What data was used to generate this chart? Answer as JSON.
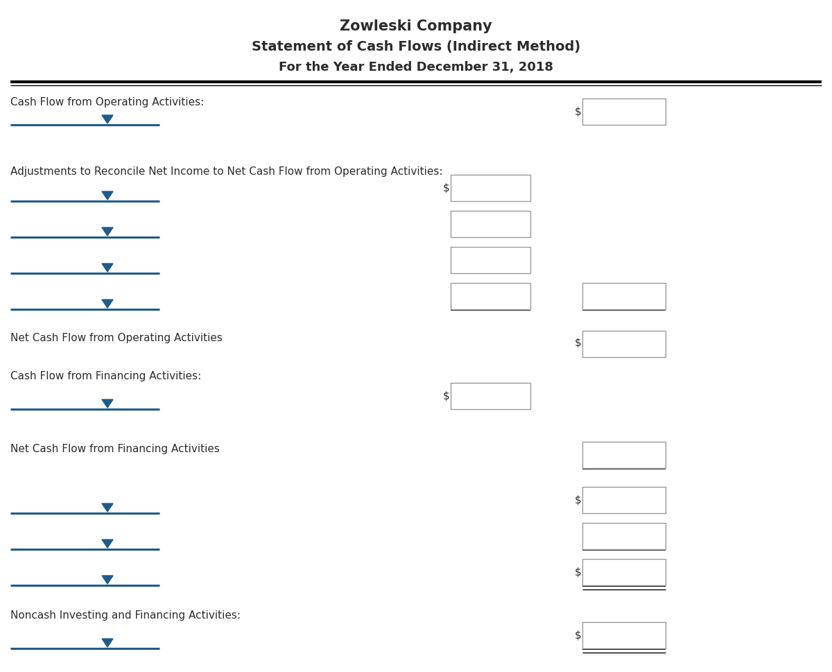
{
  "title1": "Zowleski Company",
  "title2": "Statement of Cash Flows (Indirect Method)",
  "title3": "For the Year Ended December 31, 2018",
  "bg_color": "#ffffff",
  "text_color": "#2c2c2c",
  "dropdown_color": "#1f5c8b",
  "box_border_color": "#999999",
  "figsize": [
    12.0,
    9.69
  ],
  "dpi": 100
}
